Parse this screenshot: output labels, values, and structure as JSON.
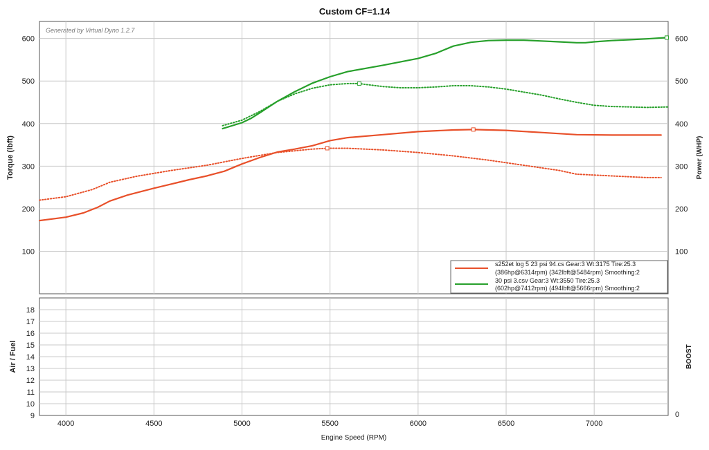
{
  "chart_data": [
    {
      "type": "line",
      "title": "Custom CF=1.14",
      "watermark": "Generated by Virtual Dyno 1.2.7",
      "ylabel_left": "Torque (lbft)",
      "ylabel_right": "Power (WHP)",
      "xlim": [
        3850,
        7420
      ],
      "ylim": [
        0,
        640
      ],
      "x_ticks": [
        4000,
        4500,
        5000,
        5500,
        6000,
        6500,
        7000
      ],
      "y_ticks": [
        100,
        200,
        300,
        400,
        500,
        600
      ],
      "grid": true,
      "colors": {
        "run1": "#e8502a",
        "run2": "#27a02b"
      },
      "legend": {
        "placement": "bottom-right",
        "entries": [
          {
            "line1": "s252et log 5 23 psi 94.cs Gear:3 Wt:3175 Tire:25.3",
            "line2": "(386hp@6314rpm) (342lbft@5484rpm) Smoothing:2",
            "color": "#e8502a"
          },
          {
            "line1": "30 psi 3.csv Gear:3 Wt:3550 Tire:25.3",
            "line2": "(602hp@7412rpm) (494lbft@5666rpm) Smoothing:2",
            "color": "#27a02b"
          }
        ]
      },
      "series": [
        {
          "run": "run1",
          "measure": "power",
          "style": "solid",
          "color": "#e8502a",
          "x": [
            3850,
            4000,
            4100,
            4180,
            4250,
            4350,
            4500,
            4600,
            4700,
            4800,
            4900,
            5000,
            5100,
            5200,
            5300,
            5400,
            5500,
            5600,
            5800,
            6000,
            6200,
            6314,
            6500,
            6700,
            6900,
            7100,
            7300,
            7380
          ],
          "y": [
            172,
            180,
            190,
            203,
            218,
            232,
            248,
            258,
            268,
            277,
            288,
            305,
            320,
            333,
            340,
            348,
            360,
            367,
            374,
            381,
            385,
            386,
            384,
            379,
            374,
            373,
            373,
            373
          ],
          "peak_marker": [
            6314,
            386
          ]
        },
        {
          "run": "run1",
          "measure": "torque",
          "style": "dotted",
          "color": "#e8502a",
          "x": [
            3850,
            4000,
            4150,
            4250,
            4400,
            4600,
            4800,
            5000,
            5200,
            5400,
            5484,
            5600,
            5800,
            6000,
            6200,
            6400,
            6600,
            6800,
            6900,
            7100,
            7300,
            7380
          ],
          "y": [
            220,
            228,
            245,
            262,
            276,
            290,
            302,
            318,
            332,
            340,
            342,
            342,
            338,
            332,
            324,
            314,
            302,
            290,
            281,
            277,
            273,
            273
          ],
          "peak_marker": [
            5484,
            342
          ]
        },
        {
          "run": "run2",
          "measure": "power",
          "style": "solid",
          "color": "#27a02b",
          "x": [
            4890,
            5000,
            5050,
            5100,
            5200,
            5300,
            5400,
            5500,
            5600,
            5800,
            6000,
            6100,
            6200,
            6300,
            6400,
            6500,
            6600,
            6700,
            6800,
            6900,
            6950,
            7000,
            7100,
            7200,
            7300,
            7412
          ],
          "y": [
            388,
            402,
            412,
            425,
            452,
            475,
            495,
            510,
            522,
            537,
            553,
            565,
            582,
            591,
            595,
            596,
            596,
            594,
            592,
            590,
            590,
            592,
            595,
            597,
            599,
            602
          ],
          "peak_marker": [
            7412,
            602
          ]
        },
        {
          "run": "run2",
          "measure": "torque",
          "style": "dotted",
          "color": "#27a02b",
          "x": [
            4890,
            5000,
            5100,
            5200,
            5300,
            5400,
            5500,
            5600,
            5666,
            5700,
            5800,
            5900,
            6000,
            6100,
            6200,
            6300,
            6400,
            6500,
            6600,
            6700,
            6800,
            6900,
            7000,
            7100,
            7200,
            7300,
            7420
          ],
          "y": [
            395,
            408,
            428,
            452,
            470,
            483,
            491,
            494,
            494,
            492,
            487,
            484,
            484,
            486,
            489,
            489,
            486,
            481,
            474,
            467,
            458,
            450,
            443,
            440,
            439,
            438,
            439
          ],
          "peak_marker": [
            5666,
            494
          ]
        }
      ]
    },
    {
      "type": "line",
      "ylabel_left": "Air / Fuel",
      "ylabel_right": "BOOST",
      "xlabel": "Engine Speed (RPM)",
      "xlim": [
        3850,
        7420
      ],
      "ylim": [
        9,
        19
      ],
      "y_ticks": [
        9,
        10,
        11,
        12,
        13,
        14,
        15,
        16,
        17,
        18
      ],
      "right_ticks": [
        "0"
      ],
      "x_ticks": [
        4000,
        4500,
        5000,
        5500,
        6000,
        6500,
        7000
      ],
      "grid": true,
      "series": []
    }
  ]
}
